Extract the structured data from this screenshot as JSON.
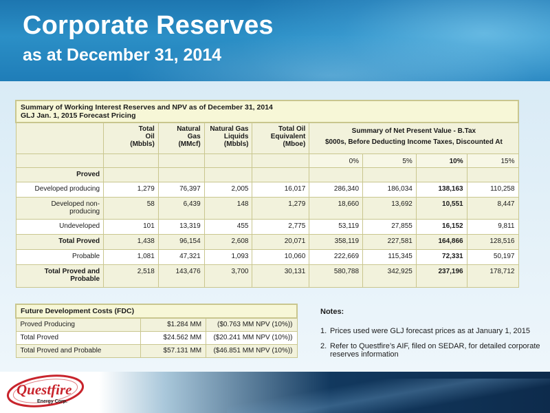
{
  "header": {
    "title": "Corporate Reserves",
    "subtitle": "as at December 31, 2014"
  },
  "reserves_table": {
    "caption_line1": "Summary of Working Interest Reserves and NPV as of December 31, 2014",
    "caption_line2": "GLJ Jan. 1, 2015 Forecast Pricing",
    "columns": {
      "oil": [
        "Total",
        "Oil",
        "(Mbbls)"
      ],
      "gas": [
        "Natural",
        "Gas",
        "(MMcf)"
      ],
      "ngl": [
        "Natural Gas",
        "Liquids",
        "(Mbbls)"
      ],
      "boe": [
        "Total Oil",
        "Equivalent",
        "(Mboe)"
      ],
      "npv_line1": "Summary of Net Present Value - B.Tax",
      "npv_line2": "$000s, Before Deducting Income Taxes, Discounted At"
    },
    "discount_rates": [
      "0%",
      "5%",
      "10%",
      "15%"
    ],
    "section_label": "Proved",
    "rows": [
      {
        "label": "Developed producing",
        "oil": "1,279",
        "gas": "76,397",
        "ngl": "2,005",
        "boe": "16,017",
        "npv0": "286,340",
        "npv5": "186,034",
        "npv10": "138,163",
        "npv15": "110,258"
      },
      {
        "label": "Developed non-producing",
        "oil": "58",
        "gas": "6,439",
        "ngl": "148",
        "boe": "1,279",
        "npv0": "18,660",
        "npv5": "13,692",
        "npv10": "10,551",
        "npv15": "8,447"
      },
      {
        "label": "Undeveloped",
        "oil": "101",
        "gas": "13,319",
        "ngl": "455",
        "boe": "2,775",
        "npv0": "53,119",
        "npv5": "27,855",
        "npv10": "16,152",
        "npv15": "9,811"
      },
      {
        "label": "Total Proved",
        "oil": "1,438",
        "gas": "96,154",
        "ngl": "2,608",
        "boe": "20,071",
        "npv0": "358,119",
        "npv5": "227,581",
        "npv10": "164,866",
        "npv15": "128,516"
      },
      {
        "label": "Probable",
        "oil": "1,081",
        "gas": "47,321",
        "ngl": "1,093",
        "boe": "10,060",
        "npv0": "222,669",
        "npv5": "115,345",
        "npv10": "72,331",
        "npv15": "50,197"
      },
      {
        "label": "Total Proved and Probable",
        "oil": "2,518",
        "gas": "143,476",
        "ngl": "3,700",
        "boe": "30,131",
        "npv0": "580,788",
        "npv5": "342,925",
        "npv10": "237,196",
        "npv15": "178,712"
      }
    ]
  },
  "fdc": {
    "title": "Future Development Costs (FDC)",
    "rows": [
      {
        "label": "Proved Producing",
        "cost": "$1.284 MM",
        "npv": "($0.763 MM NPV (10%))"
      },
      {
        "label": "Total Proved",
        "cost": "$24.562 MM",
        "npv": "($20.241 MM NPV (10%))"
      },
      {
        "label": "Total Proved and Probable",
        "cost": "$57.131 MM",
        "npv": "($46.851 MM NPV (10%))"
      }
    ]
  },
  "notes": {
    "title": "Notes:",
    "items": [
      {
        "num": "1.",
        "text": "Prices used were GLJ forecast prices as at January 1, 2015"
      },
      {
        "num": "2.",
        "text": "Refer to Questfire’s AIF, filed on SEDAR, for detailed corporate reserves information"
      }
    ]
  },
  "logo": {
    "name": "Questfire",
    "tagline": "Energy Corp."
  },
  "colors": {
    "header_blue": "#2b8fc6",
    "table_border": "#c9c68e",
    "table_shade": "#f2f2dc",
    "logo_red": "#c8242c",
    "footer_navy": "#12395f"
  }
}
